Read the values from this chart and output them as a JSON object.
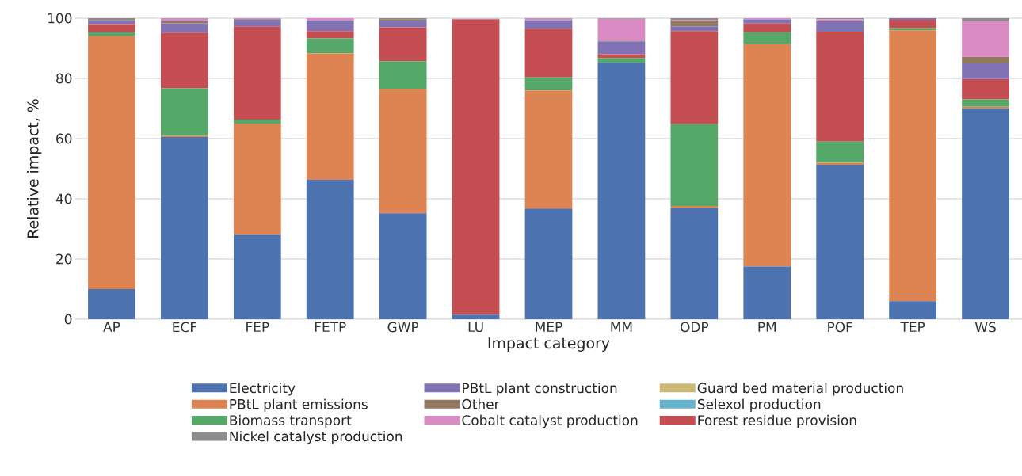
{
  "chart_data": {
    "type": "bar",
    "stacked": true,
    "xlabel": "Impact category",
    "ylabel": "Relative impact, %",
    "categories": [
      "AP",
      "ECF",
      "FEP",
      "FETP",
      "GWP",
      "LU",
      "MEP",
      "MM",
      "ODP",
      "PM",
      "POF",
      "TEP",
      "WS"
    ],
    "ylim": [
      0,
      100
    ],
    "yticks": [
      0,
      20,
      40,
      60,
      80,
      100
    ],
    "grid": "y",
    "legend": "bottom",
    "series": [
      {
        "name": "Electricity",
        "color": "#4c72b0",
        "values": [
          10,
          60.5,
          28,
          46.3,
          35.2,
          1.5,
          36.8,
          85.2,
          37,
          17.5,
          51.3,
          6,
          70
        ]
      },
      {
        "name": "PBtL plant emissions",
        "color": "#dd8452",
        "values": [
          84,
          0.5,
          37,
          42,
          41.3,
          null,
          39.2,
          0,
          0.6,
          73.9,
          0.7,
          90,
          0.6
        ]
      },
      {
        "name": "Biomass transport",
        "color": "#55a868",
        "values": [
          1.3,
          15.7,
          1.3,
          5,
          9.2,
          0,
          4.3,
          1.6,
          27.2,
          3.9,
          7,
          0.8,
          2.4
        ]
      },
      {
        "name": "Forest residue provision",
        "color": "#c44e52",
        "values": [
          2.7,
          18.5,
          31,
          2.4,
          11.3,
          98.1,
          16.2,
          1.2,
          30.9,
          2.9,
          36.5,
          2.7,
          6.8
        ]
      },
      {
        "name": "PBtL plant construction",
        "color": "#8172b3",
        "values": [
          1.3,
          3.1,
          2.2,
          3.5,
          2.2,
          0.2,
          2.8,
          4.3,
          1.6,
          1.4,
          3.5,
          0.5,
          5.2
        ]
      },
      {
        "name": "Other",
        "color": "#937860",
        "values": [
          0.2,
          0.7,
          0.2,
          0,
          0.5,
          0,
          0,
          0.2,
          1.9,
          0,
          0,
          0,
          2.2
        ]
      },
      {
        "name": "Cobalt catalyst production",
        "color": "#da8bc3",
        "values": [
          0,
          0.8,
          0.3,
          0.8,
          0,
          0,
          0.5,
          7.3,
          0.3,
          0.4,
          0.6,
          0,
          11.8
        ]
      },
      {
        "name": "Nickel catalyst production",
        "color": "#8c8c8c",
        "values": [
          0.5,
          0.2,
          0,
          0,
          0.3,
          0,
          0.2,
          0.2,
          0.5,
          0,
          0.4,
          0,
          1
        ]
      },
      {
        "name": "Guard bed material production",
        "color": "#ccb974",
        "values": [
          0,
          0,
          0,
          0,
          0,
          0,
          0,
          0,
          0,
          0,
          0,
          0,
          0
        ]
      },
      {
        "name": "Selexol production",
        "color": "#64b5cd",
        "values": [
          0,
          0,
          0,
          0,
          0,
          0,
          0,
          0,
          0,
          0,
          0,
          0,
          0
        ]
      }
    ]
  }
}
